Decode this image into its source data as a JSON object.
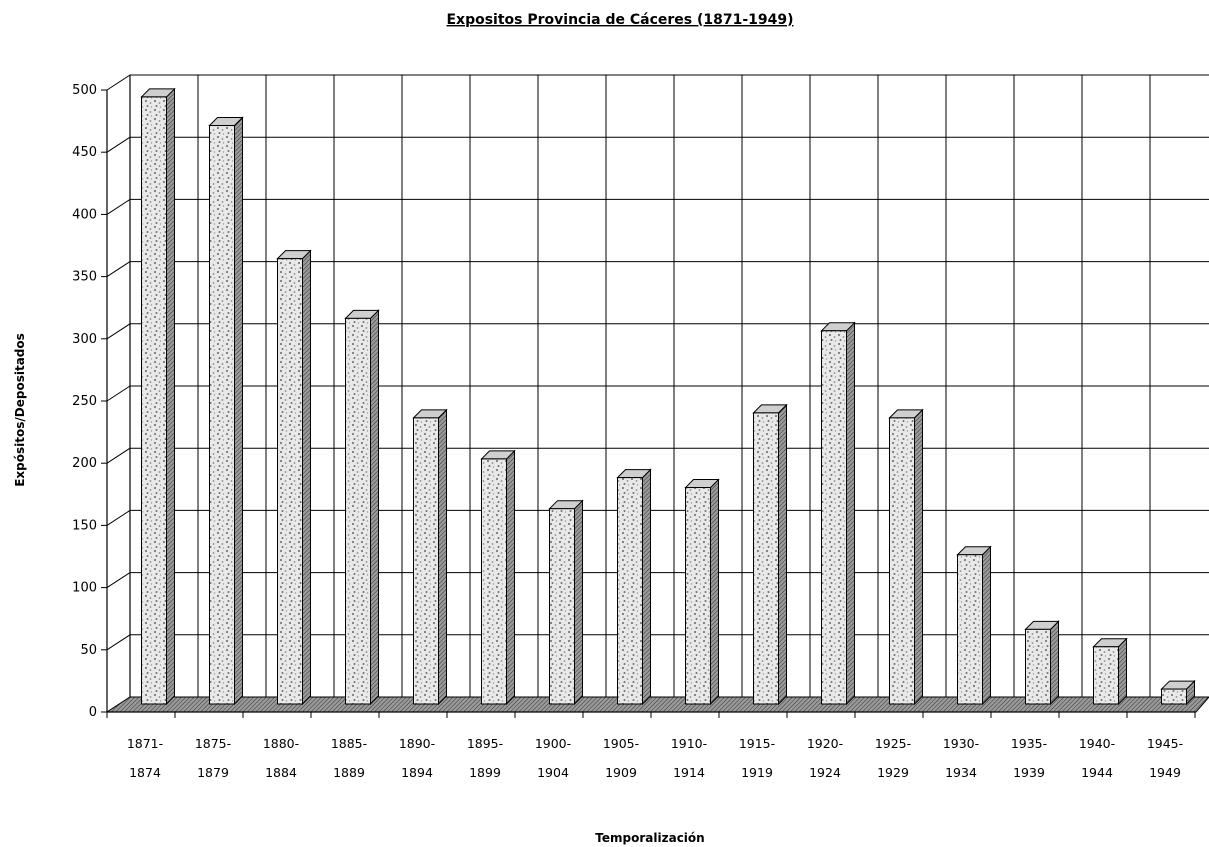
{
  "chart_data": {
    "type": "bar",
    "title": "Expositos Provincia de Cáceres (1871-1949)",
    "xlabel": "Temporalización",
    "ylabel": "Expósitos/Depositados",
    "ylim": [
      0,
      500
    ],
    "yticks": [
      0,
      50,
      100,
      150,
      200,
      250,
      300,
      350,
      400,
      450,
      500
    ],
    "grid": true,
    "categories": [
      [
        "1871-",
        "1874"
      ],
      [
        "1875-",
        "1879"
      ],
      [
        "1880-",
        "1884"
      ],
      [
        "1885-",
        "1889"
      ],
      [
        "1890-",
        "1894"
      ],
      [
        "1895-",
        "1899"
      ],
      [
        "1900-",
        "1904"
      ],
      [
        "1905-",
        "1909"
      ],
      [
        "1910-",
        "1914"
      ],
      [
        "1915-",
        "1919"
      ],
      [
        "1920-",
        "1924"
      ],
      [
        "1925-",
        "1929"
      ],
      [
        "1930-",
        "1934"
      ],
      [
        "1935-",
        "1939"
      ],
      [
        "1940-",
        "1944"
      ],
      [
        "1945-",
        "1949"
      ]
    ],
    "values": [
      488,
      465,
      358,
      310,
      230,
      197,
      157,
      182,
      174,
      234,
      300,
      230,
      120,
      60,
      46,
      12
    ],
    "colors": {
      "bar_face": "#e6e6e6",
      "bar_speckle": "#7a7a7a",
      "bar_side": "#8c8c8c",
      "bar_top": "#d0d0d0",
      "floor": "#7f7f7f",
      "grid": "#000000"
    }
  }
}
